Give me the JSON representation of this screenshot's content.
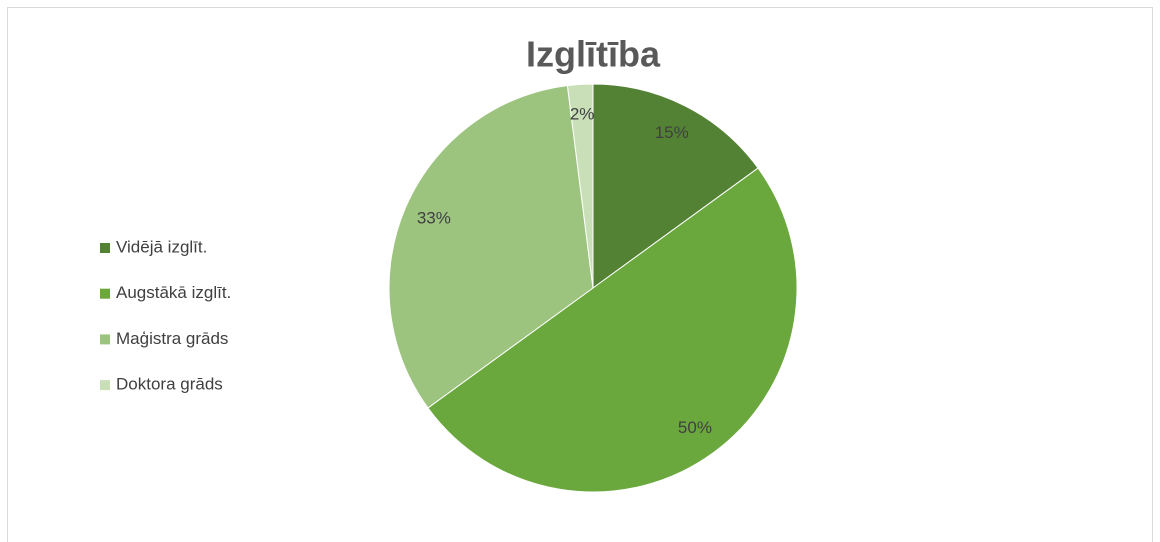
{
  "chart_data": {
    "type": "pie",
    "title": "Izglītība",
    "categories": [
      "Vidējā izglīt.",
      "Augstākā izglīt.",
      "Maģistra grāds",
      "Doktora grāds"
    ],
    "values": [
      15,
      50,
      33,
      2
    ],
    "value_labels": [
      "15%",
      "50%",
      "33%",
      "2%"
    ],
    "colors": [
      "#548235",
      "#6aa83e",
      "#9cc47e",
      "#c8dfb8"
    ],
    "legend": "left"
  }
}
